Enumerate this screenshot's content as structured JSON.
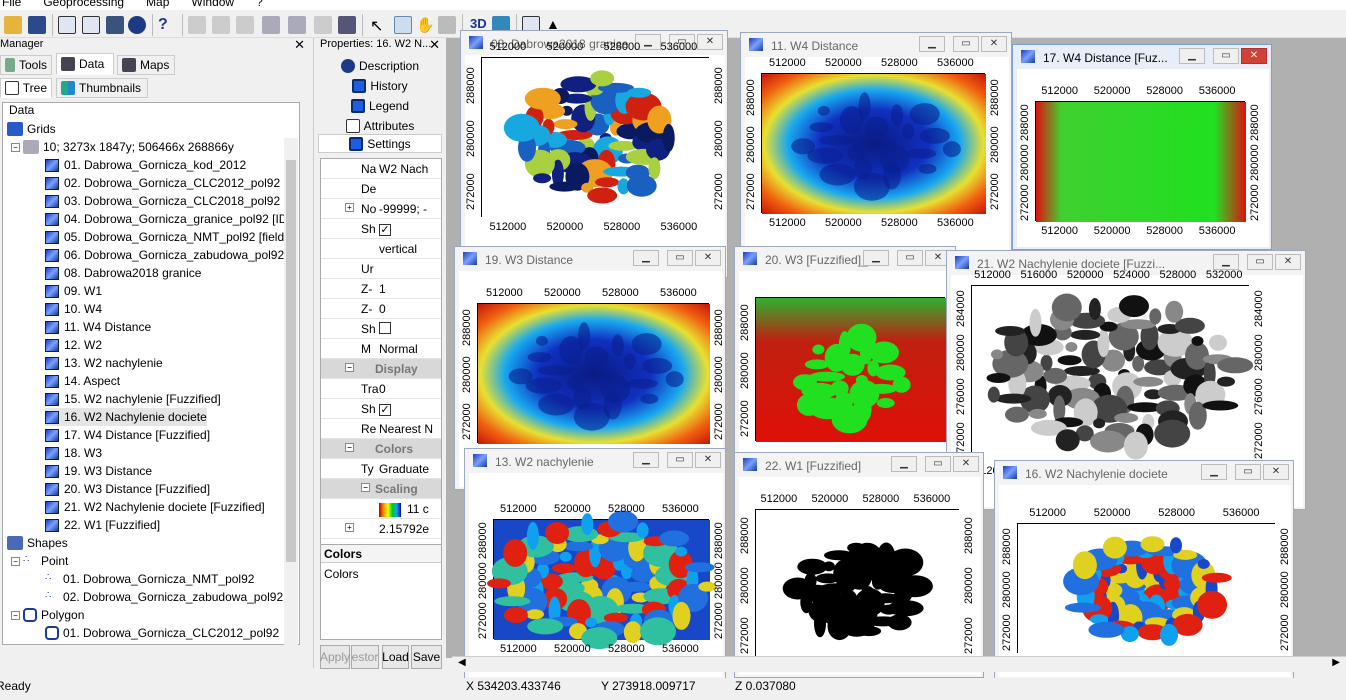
{
  "menu": [
    "File",
    "Geoprocessing",
    "Map",
    "Window",
    "?"
  ],
  "manager": {
    "title": "Manager",
    "tabs": [
      "Tools",
      "Data",
      "Maps"
    ],
    "subtabs": [
      "Tree",
      "Thumbnails"
    ],
    "tree": {
      "root": "Data",
      "grids_label": "Grids",
      "system": "10; 3273x 1847y; 506466x 268866y",
      "grids": [
        "01. Dabrowa_Gornicza_kod_2012",
        "02. Dobrowa_Gornicza_CLC2012_pol92 [k",
        "03. Dobrowa_Gornicza_CLC2018_pol92 [k",
        "04. Dobrowa_Gornicza_granice_pol92 [ID]",
        "05. Dobrowa_Gornicza_NMT_pol92 [field_",
        "06. Dobrowa_Gornicza_zabudowa_pol92 [",
        "08. Dabrowa2018 granice",
        "09. W1",
        "10. W4",
        "11. W4 Distance",
        "12. W2",
        "13. W2 nachylenie",
        "14. Aspect",
        "15. W2 nachylenie [Fuzzified]",
        "16. W2 Nachylenie dociete",
        "17. W4 Distance [Fuzzified]",
        "18. W3",
        "19. W3 Distance",
        "20. W3 Distance [Fuzzified]",
        "21. W2 Nachylenie dociete [Fuzzified]",
        "22. W1 [Fuzzified]"
      ],
      "shapes_label": "Shapes",
      "point_label": "Point",
      "points": [
        "01. Dobrowa_Gornicza_NMT_pol92",
        "02. Dobrowa_Gornicza_zabudowa_pol92"
      ],
      "polygon_label": "Polygon",
      "polygons": [
        "01. Dobrowa_Gornicza_CLC2012_pol92"
      ]
    }
  },
  "properties": {
    "title": "Properties: 16. W2 N...",
    "tabs": [
      "Description",
      "History",
      "Legend",
      "Attributes",
      "Settings"
    ],
    "rows": [
      {
        "k": "Na",
        "v": "W2 Nach"
      },
      {
        "k": "De",
        "v": ""
      },
      {
        "k": "No",
        "v": "-99999; -"
      },
      {
        "k": "Sh",
        "v": "✓"
      },
      {
        "k": "",
        "v": "vertical"
      },
      {
        "k": "Ur",
        "v": ""
      },
      {
        "k": "Z-",
        "v": "1"
      },
      {
        "k": "Z-",
        "v": "0"
      },
      {
        "k": "Sh",
        "v": ""
      },
      {
        "k": "M",
        "v": "Normal"
      },
      {
        "k": "Display",
        "v": "",
        "section": true
      },
      {
        "k": "Tra",
        "v": "0"
      },
      {
        "k": "Sh",
        "v": "✓"
      },
      {
        "k": "Re",
        "v": "Nearest N"
      },
      {
        "k": "Colors",
        "v": "",
        "section": true
      },
      {
        "k": "Ty",
        "v": "Graduate"
      },
      {
        "k": "Scaling",
        "v": "",
        "section": true
      },
      {
        "k": "",
        "v": "11 c"
      },
      {
        "k": "",
        "v": "2.15792e"
      }
    ],
    "desc_title": "Colors",
    "desc_text": "Colors",
    "buttons": [
      "Apply",
      "estor",
      "Load",
      "Save"
    ]
  },
  "windows": [
    {
      "id": "w08",
      "title": "08. Dabrowa2018 granice",
      "kind": "landcover",
      "xt": [
        "512000",
        "520000",
        "528000",
        "536000"
      ],
      "yt": [
        "272000",
        "280000",
        "288000"
      ]
    },
    {
      "id": "w11",
      "title": "11. W4 Distance",
      "kind": "dist",
      "xt": [
        "512000",
        "520000",
        "528000",
        "536000"
      ],
      "yt": [
        "272000",
        "280000",
        "288000"
      ]
    },
    {
      "id": "w17",
      "title": "17. W4 Distance [Fuz...",
      "kind": "fuzzgreen",
      "xt": [
        "512000",
        "520000",
        "528000",
        "536000"
      ],
      "yt": [
        "272000",
        "280000",
        "288000"
      ]
    },
    {
      "id": "w19",
      "title": "19. W3 Distance",
      "kind": "dist2",
      "xt": [
        "512000",
        "520000",
        "528000",
        "536000"
      ],
      "yt": [
        "272000",
        "280000",
        "288000"
      ]
    },
    {
      "id": "w20",
      "title": "20. W3 [Fuzzified]_1",
      "kind": "fuzzred",
      "xt": [],
      "yt": [
        "272000",
        "280000",
        "288000"
      ]
    },
    {
      "id": "w21",
      "title": "21. W2 Nachylenie dociete [Fuzzi...",
      "kind": "gray",
      "xt": [
        "512000",
        "516000",
        "520000",
        "524000",
        "528000",
        "532000"
      ],
      "yt": [
        "272000",
        "276000",
        "280000",
        "284000"
      ]
    },
    {
      "id": "w13",
      "title": "13. W2 nachylenie",
      "kind": "slope",
      "xt": [
        "512000",
        "520000",
        "528000",
        "536000"
      ],
      "yt": [
        "272000",
        "280000",
        "288000"
      ]
    },
    {
      "id": "w22",
      "title": "22. W1 [Fuzzified]",
      "kind": "black",
      "xt": [
        "512000",
        "520000",
        "528000",
        "536000"
      ],
      "yt": [
        "272000",
        "280000",
        "288000"
      ]
    },
    {
      "id": "w16",
      "title": "16. W2 Nachylenie dociete",
      "kind": "slopeclip",
      "xt": [
        "512000",
        "520000",
        "528000",
        "536000"
      ],
      "yt": [
        "272000",
        "280000",
        "288000"
      ]
    }
  ],
  "status": {
    "left": "Ready",
    "x": "X 534203.433746",
    "y": "Y 273918.009717",
    "z": "Z 0.037080"
  }
}
